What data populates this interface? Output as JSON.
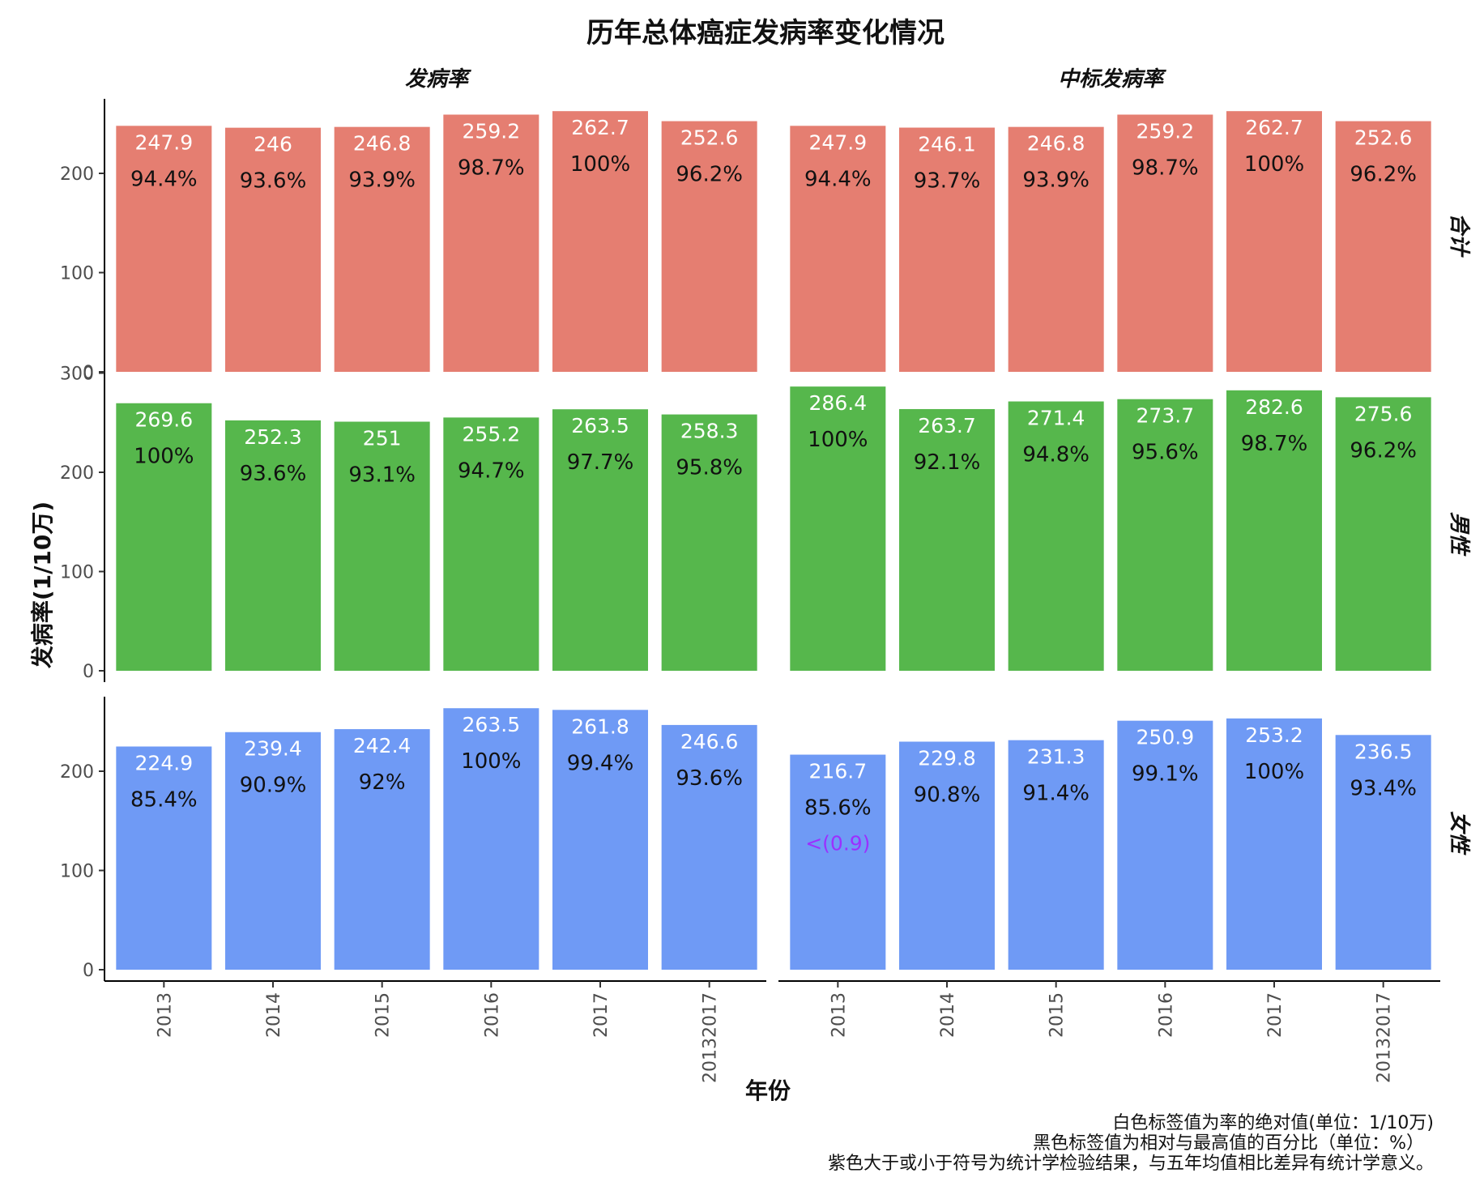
{
  "title": "历年总体癌症发病率变化情况",
  "xlabel": "年份",
  "ylabel": "发病率(1/10万)",
  "caption": [
    "白色标签值为率的绝对值(单位：1/10万)",
    "黑色标签值为相对与最高值的百分比（单位：%）",
    "紫色大于或小于符号为统计学检验结果，与五年均值相比差异有统计学意义。"
  ],
  "chart_data": {
    "type": "bar",
    "categories": [
      "2013",
      "2014",
      "2015",
      "2016",
      "2017",
      "20132017"
    ],
    "columns": [
      "发病率",
      "中标发病率"
    ],
    "rows": [
      "合计",
      "男性",
      "女性"
    ],
    "ylim": [
      0,
      300
    ],
    "yticks": [
      0,
      100,
      200,
      300
    ],
    "colors": {
      "合计": "#E57E71",
      "男性": "#56B74C",
      "女性": "#6F9AF5"
    },
    "panels": [
      {
        "row": "合计",
        "column": "发病率",
        "values": [
          247.9,
          246,
          246.8,
          259.2,
          262.7,
          252.6
        ],
        "labels": [
          "247.9",
          "246",
          "246.8",
          "259.2",
          "262.7",
          "252.6"
        ],
        "pct": [
          "94.4%",
          "93.6%",
          "93.9%",
          "98.7%",
          "100%",
          "96.2%"
        ],
        "sig": [
          "",
          "",
          "",
          "",
          "",
          ""
        ]
      },
      {
        "row": "合计",
        "column": "中标发病率",
        "values": [
          247.9,
          246.1,
          246.8,
          259.2,
          262.7,
          252.6
        ],
        "labels": [
          "247.9",
          "246.1",
          "246.8",
          "259.2",
          "262.7",
          "252.6"
        ],
        "pct": [
          "94.4%",
          "93.7%",
          "93.9%",
          "98.7%",
          "100%",
          "96.2%"
        ],
        "sig": [
          "",
          "",
          "",
          "",
          "",
          ""
        ]
      },
      {
        "row": "男性",
        "column": "发病率",
        "values": [
          269.6,
          252.3,
          251,
          255.2,
          263.5,
          258.3
        ],
        "labels": [
          "269.6",
          "252.3",
          "251",
          "255.2",
          "263.5",
          "258.3"
        ],
        "pct": [
          "100%",
          "93.6%",
          "93.1%",
          "94.7%",
          "97.7%",
          "95.8%"
        ],
        "sig": [
          "",
          "",
          "",
          "",
          "",
          ""
        ]
      },
      {
        "row": "男性",
        "column": "中标发病率",
        "values": [
          286.4,
          263.7,
          271.4,
          273.7,
          282.6,
          275.6
        ],
        "labels": [
          "286.4",
          "263.7",
          "271.4",
          "273.7",
          "282.6",
          "275.6"
        ],
        "pct": [
          "100%",
          "92.1%",
          "94.8%",
          "95.6%",
          "98.7%",
          "96.2%"
        ],
        "sig": [
          "",
          "",
          "",
          "",
          "",
          ""
        ]
      },
      {
        "row": "女性",
        "column": "发病率",
        "values": [
          224.9,
          239.4,
          242.4,
          263.5,
          261.8,
          246.6
        ],
        "labels": [
          "224.9",
          "239.4",
          "242.4",
          "263.5",
          "261.8",
          "246.6"
        ],
        "pct": [
          "85.4%",
          "90.9%",
          "92%",
          "100%",
          "99.4%",
          "93.6%"
        ],
        "sig": [
          "",
          "",
          "",
          "",
          "",
          ""
        ]
      },
      {
        "row": "女性",
        "column": "中标发病率",
        "values": [
          216.7,
          229.8,
          231.3,
          250.9,
          253.2,
          236.5
        ],
        "labels": [
          "216.7",
          "229.8",
          "231.3",
          "250.9",
          "253.2",
          "236.5"
        ],
        "pct": [
          "85.6%",
          "90.8%",
          "91.4%",
          "99.1%",
          "100%",
          "93.4%"
        ],
        "sig": [
          "<(0.9)",
          "",
          "",
          "",
          "",
          ""
        ]
      }
    ]
  }
}
